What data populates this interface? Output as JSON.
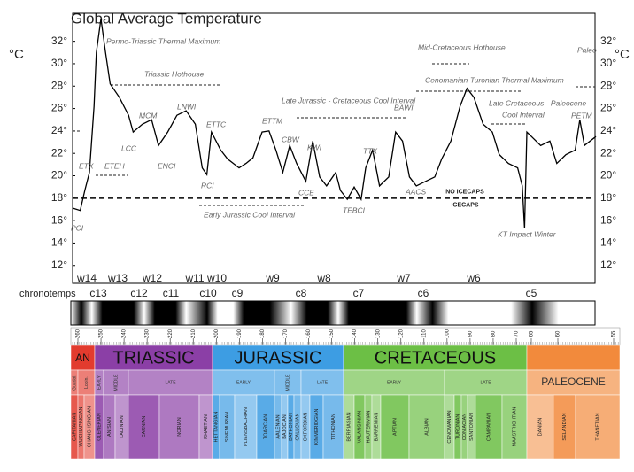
{
  "chart_data": {
    "type": "line",
    "title": "Global Average Temperature",
    "y_unit": "°C",
    "xlim": [
      262.3,
      35.4
    ],
    "ylim": [
      10.4,
      34.5
    ],
    "yticks": [
      {
        "value": 12,
        "label": "12°"
      },
      {
        "value": 14,
        "label": "14°"
      },
      {
        "value": 16,
        "label": "16°"
      },
      {
        "value": 18,
        "label": "18°"
      },
      {
        "value": 20,
        "label": "20°"
      },
      {
        "value": 22,
        "label": "22°"
      },
      {
        "value": 24,
        "label": "24°"
      },
      {
        "value": 26,
        "label": "26°"
      },
      {
        "value": 28,
        "label": "28°"
      },
      {
        "value": 30,
        "label": "30°"
      },
      {
        "value": 32,
        "label": "32°"
      }
    ],
    "series": [
      {
        "color": "#000000",
        "x": [
          262,
          259,
          257,
          255,
          253,
          252,
          250,
          248,
          246,
          242,
          238,
          236,
          232,
          228,
          225,
          221,
          217,
          213,
          209,
          206,
          204,
          202,
          198,
          195,
          190,
          187,
          184,
          180,
          177,
          174,
          171,
          168,
          165,
          161,
          158,
          155,
          152,
          148,
          146,
          143,
          140,
          137,
          135,
          132,
          129,
          125,
          122,
          119,
          116,
          113,
          109,
          105,
          102,
          98,
          94,
          91,
          88,
          84,
          80,
          77,
          73,
          69,
          67,
          66,
          65,
          63,
          59,
          55,
          52,
          48,
          44,
          42,
          40,
          35
        ],
        "values": [
          17.1,
          16.9,
          18.7,
          20.3,
          26.2,
          31.0,
          34.0,
          31.0,
          28.2,
          27.0,
          25.4,
          23.9,
          24.6,
          25.0,
          22.7,
          23.9,
          25.4,
          25.8,
          24.6,
          20.7,
          20.1,
          23.9,
          22.3,
          21.5,
          20.7,
          21.1,
          21.6,
          23.9,
          24.0,
          22.3,
          20.3,
          22.7,
          21.1,
          19.5,
          23.1,
          19.9,
          19.1,
          20.3,
          18.7,
          17.9,
          19.0,
          17.9,
          20.7,
          22.3,
          19.1,
          19.9,
          23.9,
          23.1,
          19.9,
          19.1,
          19.5,
          19.9,
          21.5,
          23.1,
          26.2,
          27.8,
          27.0,
          24.6,
          23.9,
          21.9,
          21.1,
          20.7,
          19.1,
          15.3,
          23.9,
          23.5,
          22.7,
          23.1,
          21.1,
          21.9,
          22.3,
          25.0,
          22.7,
          23.5
        ]
      }
    ],
    "reference_line": {
      "value": 18,
      "style": "dashed",
      "label_above": "NO ICECAPS",
      "label_below": "ICECAPS"
    },
    "annotations": [
      "Permo-Triassic Thermal Maximum",
      "Triassic Hothouse",
      "ETX",
      "ETEH",
      "LCC",
      "MCM",
      "ENCI",
      "LNWI",
      "ETTC",
      "RCI",
      "ETTM",
      "CBW",
      "KWI",
      "CCE",
      "Early Jurassic Cool Interval",
      "Late Jurassic - Cretaceous Cool Interval",
      "TEBCI",
      "TTX",
      "BAWI",
      "AACS",
      "Mid-Cretaceous  Hothouse",
      "Cenomanian-Turonian Thermal Maximum",
      "Late Cretaceous - Paleocene",
      "Cool Interval",
      "PETM",
      "Paleo",
      "KT Impact Winter",
      "PCI"
    ],
    "windows": [
      "w14",
      "w13",
      "w12",
      "w11",
      "w10",
      "w9",
      "w8",
      "w7",
      "w6"
    ],
    "chronotemps_label": "chronotemps",
    "chronotemps": [
      "c13",
      "c12",
      "c11",
      "c10",
      "c9",
      "c8",
      "c7",
      "c6",
      "c5"
    ]
  },
  "timescale": {
    "ticks": [
      260,
      250,
      240,
      230,
      220,
      210,
      200,
      190,
      180,
      170,
      160,
      150,
      140,
      130,
      120,
      110,
      100,
      90,
      80,
      70,
      65,
      60,
      55
    ],
    "periods": [
      {
        "name": "AN",
        "color": "#e23b2e"
      },
      {
        "name": "TRIASSIC",
        "color": "#8b3fa6"
      },
      {
        "name": "JURASSIC",
        "color": "#3d9de3"
      },
      {
        "name": "CRETACEOUS",
        "color": "#6cbf45"
      },
      {
        "color": "#f28a3c"
      }
    ],
    "epochs": [
      "Guadal.",
      "Lopin.",
      "EARLY",
      "MIDDLE",
      "LATE",
      "EARLY",
      "MIDDLE",
      "LATE",
      "EARLY",
      "LATE",
      "PALEOCENE"
    ],
    "stages": [
      "CAPITANIAN",
      "WUCHIAPINGIAN",
      "CHANGHSINGIAN",
      "OLENEKIAN",
      "ANISIAN",
      "LADINIAN",
      "CARNIAN",
      "NORIAN",
      "RHAETIAN",
      "HETTANGIAN",
      "SINEMURIAN",
      "PLIENSBACHIAN",
      "TOARCIAN",
      "AALENIAN",
      "BAJOCIAN",
      "BATHONIAN",
      "CALLOVIAN",
      "OXFORDIAN",
      "KIMMERIDGIAN",
      "TITHONIAN",
      "BERRIASIAN",
      "VALANGINIAN",
      "HAUTERIVIAN",
      "BARREMIAN",
      "APTIAN",
      "ALBIAN",
      "CENOMANIAN",
      "TURONIAN",
      "CONIACIAN",
      "SANTONIAN",
      "CAMPANIAN",
      "MAASTRICHTIAN",
      "DANIAN",
      "SELANDIAN",
      "THANETIAN"
    ]
  }
}
